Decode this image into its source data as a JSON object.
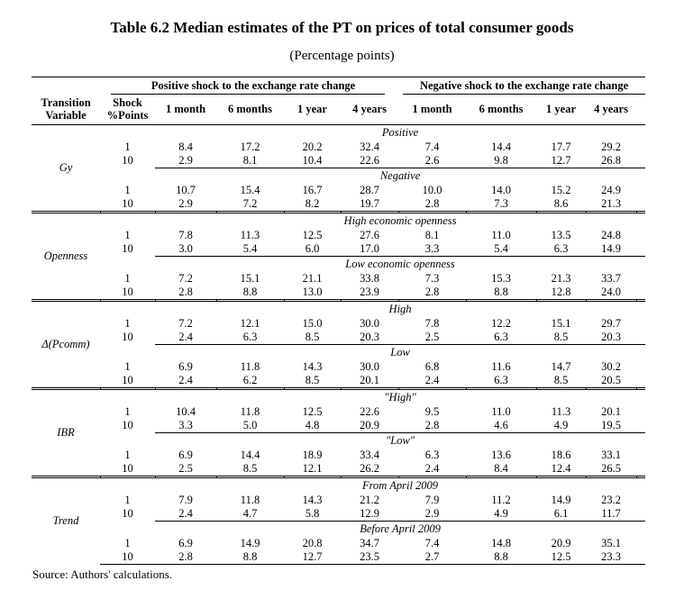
{
  "title": "Table 6.2 Median estimates of the PT on prices of total consumer goods",
  "subtitle": "(Percentage points)",
  "source_note": "Source: Authors' calculations.",
  "header": {
    "transition_variable": [
      "Transition",
      "Variable"
    ],
    "shock_points": [
      "Shock",
      "%Points"
    ],
    "spanners": [
      "Positive shock to the exchange rate change",
      "Negative shock to the exchange rate change"
    ],
    "periods": [
      "1 month",
      "6 months",
      "1 year",
      "4 years",
      "1 month",
      "6 months",
      "1 year",
      "4 years"
    ]
  },
  "sections": [
    {
      "variable": "Gy",
      "subsections": [
        {
          "label": "Positive",
          "rows": [
            {
              "shock": "1",
              "values": [
                "8.4",
                "17.2",
                "20.2",
                "32.4",
                "7.4",
                "14.4",
                "17.7",
                "29.2"
              ]
            },
            {
              "shock": "10",
              "values": [
                "2.9",
                "8.1",
                "10.4",
                "22.6",
                "2.6",
                "9.8",
                "12.7",
                "26.8"
              ]
            }
          ]
        },
        {
          "label": "Negative",
          "rows": [
            {
              "shock": "1",
              "values": [
                "10.7",
                "15.4",
                "16.7",
                "28.7",
                "10.0",
                "14.0",
                "15.2",
                "24.9"
              ]
            },
            {
              "shock": "10",
              "values": [
                "2.9",
                "7.2",
                "8.2",
                "19.7",
                "2.8",
                "7.3",
                "8.6",
                "21.3"
              ]
            }
          ]
        }
      ]
    },
    {
      "variable": "Openness",
      "subsections": [
        {
          "label": "High economic openness",
          "rows": [
            {
              "shock": "1",
              "values": [
                "7.8",
                "11.3",
                "12.5",
                "27.6",
                "8.1",
                "11.0",
                "13.5",
                "24.8"
              ]
            },
            {
              "shock": "10",
              "values": [
                "3.0",
                "5.4",
                "6.0",
                "17.0",
                "3.3",
                "5.4",
                "6.3",
                "14.9"
              ]
            }
          ]
        },
        {
          "label": "Low economic openness",
          "rows": [
            {
              "shock": "1",
              "values": [
                "7.2",
                "15.1",
                "21.1",
                "33.8",
                "7.3",
                "15.3",
                "21.3",
                "33.7"
              ]
            },
            {
              "shock": "10",
              "values": [
                "2.8",
                "8.8",
                "13.0",
                "23.9",
                "2.8",
                "8.8",
                "12.8",
                "24.0"
              ]
            }
          ]
        }
      ]
    },
    {
      "variable": "Δ(Pcomm)",
      "subsections": [
        {
          "label": "High",
          "rows": [
            {
              "shock": "1",
              "values": [
                "7.2",
                "12.1",
                "15.0",
                "30.0",
                "7.8",
                "12.2",
                "15.1",
                "29.7"
              ]
            },
            {
              "shock": "10",
              "values": [
                "2.4",
                "6.3",
                "8.5",
                "20.3",
                "2.5",
                "6.3",
                "8.5",
                "20.3"
              ]
            }
          ]
        },
        {
          "label": "Low",
          "rows": [
            {
              "shock": "1",
              "values": [
                "6.9",
                "11.8",
                "14.3",
                "30.0",
                "6.8",
                "11.6",
                "14.7",
                "30.2"
              ]
            },
            {
              "shock": "10",
              "values": [
                "2.4",
                "6.2",
                "8.5",
                "20.1",
                "2.4",
                "6.3",
                "8.5",
                "20.5"
              ]
            }
          ]
        }
      ]
    },
    {
      "variable": "IBR",
      "subsections": [
        {
          "label": "\"High\"",
          "rows": [
            {
              "shock": "1",
              "values": [
                "10.4",
                "11.8",
                "12.5",
                "22.6",
                "9.5",
                "11.0",
                "11.3",
                "20.1"
              ]
            },
            {
              "shock": "10",
              "values": [
                "3.3",
                "5.0",
                "4.8",
                "20.9",
                "2.8",
                "4.6",
                "4.9",
                "19.5"
              ]
            }
          ]
        },
        {
          "label": "\"Low\"",
          "rows": [
            {
              "shock": "1",
              "values": [
                "6.9",
                "14.4",
                "18.9",
                "33.4",
                "6.3",
                "13.6",
                "18.6",
                "33.1"
              ]
            },
            {
              "shock": "10",
              "values": [
                "2.5",
                "8.5",
                "12.1",
                "26.2",
                "2.4",
                "8.4",
                "12.4",
                "26.5"
              ]
            }
          ]
        }
      ]
    },
    {
      "variable": "Trend",
      "subsections": [
        {
          "label": "From April 2009",
          "rows": [
            {
              "shock": "1",
              "values": [
                "7.9",
                "11.8",
                "14.3",
                "21.2",
                "7.9",
                "11.2",
                "14.9",
                "23.2"
              ]
            },
            {
              "shock": "10",
              "values": [
                "2.4",
                "4.7",
                "5.8",
                "12.9",
                "2.9",
                "4.9",
                "6.1",
                "11.7"
              ]
            }
          ]
        },
        {
          "label": "Before April 2009",
          "rows": [
            {
              "shock": "1",
              "values": [
                "6.9",
                "14.9",
                "20.8",
                "34.7",
                "7.4",
                "14.8",
                "20.9",
                "35.1"
              ]
            },
            {
              "shock": "10",
              "values": [
                "2.8",
                "8.8",
                "12.7",
                "23.5",
                "2.7",
                "8.8",
                "12.5",
                "23.3"
              ]
            }
          ]
        }
      ]
    }
  ]
}
